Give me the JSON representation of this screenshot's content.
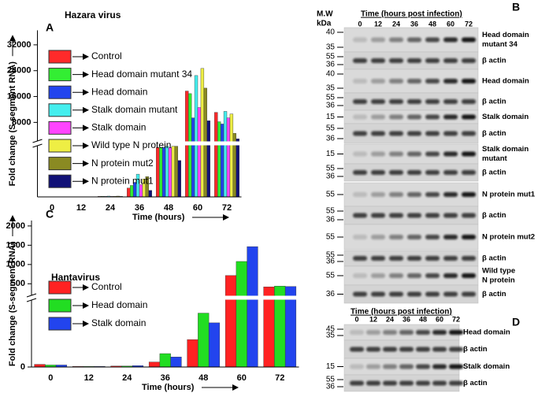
{
  "panels": [
    "A",
    "B",
    "C",
    "D"
  ],
  "chart_data": [
    {
      "type": "bar",
      "title": "Hazara virus",
      "y_label": "Fold change (S-segment RNA)",
      "x_label": "Time (hours)",
      "categories": [
        "0",
        "12",
        "24",
        "36",
        "48",
        "60",
        "72"
      ],
      "ylim": [
        0,
        36000
      ],
      "axis_break": 2000,
      "yticks": [
        8000,
        16000,
        24000,
        32000
      ],
      "series": [
        {
          "name": "Control",
          "color": "#ff2a2a",
          "label_color": "#ff0000",
          "values": [
            5,
            3,
            20,
            340,
            1900,
            17700,
            11100
          ]
        },
        {
          "name": "Head domain mutant 34",
          "color": "#33ee33",
          "label_color": "#009900",
          "values": [
            5,
            3,
            25,
            440,
            1900,
            16900,
            8200
          ]
        },
        {
          "name": "Head domain",
          "color": "#2244ee",
          "label_color": "#2233cc",
          "values": [
            5,
            3,
            20,
            560,
            1900,
            9400,
            7500
          ]
        },
        {
          "name": "Stalk domain mutant",
          "color": "#44eeee",
          "label_color": "#11bb99",
          "values": [
            5,
            3,
            30,
            875,
            1950,
            22500,
            11400
          ]
        },
        {
          "name": "Stalk domain",
          "color": "#ff44ff",
          "label_color": "#000000",
          "values": [
            5,
            3,
            20,
            470,
            1900,
            12600,
            9400
          ]
        },
        {
          "name": "Wild type N protein",
          "color": "#eeee44",
          "label_color": "#ddaa00",
          "values": [
            5,
            3,
            25,
            690,
            1950,
            24700,
            10600
          ]
        },
        {
          "name": "N protein mut2",
          "color": "#8a8a22",
          "label_color": "#888800",
          "values": [
            5,
            3,
            30,
            780,
            1950,
            18600,
            4600
          ]
        },
        {
          "name": "N protein mut1",
          "color": "#111177",
          "label_color": "#111188",
          "values": [
            5,
            3,
            20,
            250,
            1400,
            8500,
            2900
          ]
        }
      ]
    },
    {
      "type": "bar",
      "title": "Hantavirus",
      "y_label": "Fold change (S-segment RNA)",
      "x_label": "Time (hours)",
      "categories": [
        "0",
        "12",
        "24",
        "36",
        "48",
        "60",
        "72"
      ],
      "ylim": [
        0,
        2100
      ],
      "axis_break": 200,
      "yticks": [
        0,
        500,
        1000,
        1500,
        2000
      ],
      "series": [
        {
          "name": "Control",
          "color": "#ff2222",
          "label_color": "#ff0000",
          "values": [
            8,
            2,
            3,
            15,
            82,
            714,
            420
          ]
        },
        {
          "name": "Head domain",
          "color": "#22dd22",
          "label_color": "#009900",
          "values": [
            6,
            2,
            3,
            40,
            161,
            1079,
            440
          ]
        },
        {
          "name": "Stalk domain",
          "color": "#2244ee",
          "label_color": "#2233cc",
          "values": [
            6,
            2,
            4,
            30,
            132,
            1464,
            430
          ]
        }
      ]
    }
  ],
  "blots": {
    "panel_b": {
      "mw_label": "M.W",
      "unit": "kDa",
      "time_label": "Time (hours post infection)",
      "times": [
        0,
        12,
        24,
        36,
        48,
        60,
        72
      ],
      "rows": [
        {
          "markers": [
            40,
            35
          ],
          "label": [
            "Head domain",
            "mutant 34"
          ]
        },
        {
          "markers": [
            55,
            36
          ],
          "label": [
            "β actin"
          ]
        },
        {
          "markers": [
            40,
            35
          ],
          "label": [
            "Head domain"
          ]
        },
        {
          "markers": [
            55,
            36
          ],
          "label": [
            "β actin"
          ]
        },
        {
          "markers": [
            15
          ],
          "label": [
            "Stalk domain"
          ]
        },
        {
          "markers": [
            55,
            36
          ],
          "label": [
            "β actin"
          ]
        },
        {
          "markers": [
            15
          ],
          "label": [
            "Stalk domain",
            "mutant"
          ]
        },
        {
          "markers": [
            55,
            36
          ],
          "label": [
            "β actin"
          ]
        },
        {
          "markers": [
            55
          ],
          "label": [
            "N protein mut1"
          ]
        },
        {
          "markers": [
            55,
            36
          ],
          "label": [
            "β actin"
          ]
        },
        {
          "markers": [
            55
          ],
          "label": [
            "N protein mut2"
          ]
        },
        {
          "markers": [
            55,
            36
          ],
          "label": [
            "β actin"
          ]
        },
        {
          "markers": [
            55
          ],
          "label": [
            "Wild type",
            "N protein"
          ]
        },
        {
          "markers": [
            36
          ],
          "label": [
            "β actin"
          ]
        }
      ]
    },
    "panel_d": {
      "time_label": "Time (hours post infection)",
      "times": [
        0,
        12,
        24,
        36,
        48,
        60,
        72
      ],
      "rows": [
        {
          "markers": [
            45,
            35
          ],
          "label": [
            "Head domain"
          ]
        },
        {
          "markers": [],
          "label": [
            "β actin"
          ]
        },
        {
          "markers": [
            15
          ],
          "label": [
            "Stalk domain"
          ]
        },
        {
          "markers": [
            55,
            36
          ],
          "label": [
            "β actin"
          ]
        }
      ]
    }
  }
}
